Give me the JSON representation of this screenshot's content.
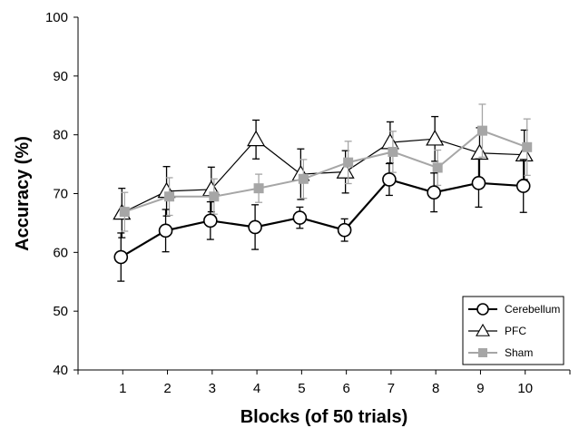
{
  "chart_data": {
    "type": "line",
    "title": "",
    "xlabel": "Blocks (of 50 trials)",
    "ylabel": "Accuracy (%)",
    "x": [
      1,
      2,
      3,
      4,
      5,
      6,
      7,
      8,
      9,
      10
    ],
    "x_tick_labels": [
      "1",
      "2",
      "3",
      "4",
      "5",
      "6",
      "7",
      "8",
      "9",
      "10"
    ],
    "xlim": [
      0,
      11
    ],
    "ylim": [
      40,
      100
    ],
    "y_ticks": [
      40,
      50,
      60,
      70,
      80,
      90,
      100
    ],
    "y_tick_labels": [
      "40",
      "50",
      "60",
      "70",
      "80",
      "90",
      "100"
    ],
    "grid": false,
    "legend_position": "bottom-right",
    "series": [
      {
        "name": "Cerebellum",
        "marker": "circle",
        "color": "#000000",
        "values": [
          59.2,
          63.7,
          65.4,
          64.3,
          65.9,
          63.8,
          72.4,
          70.2,
          71.8,
          71.3
        ],
        "errors": [
          4.1,
          3.6,
          3.2,
          3.8,
          1.8,
          1.9,
          2.7,
          3.3,
          4.1,
          4.5
        ]
      },
      {
        "name": "PFC",
        "marker": "triangle",
        "color": "#000000",
        "values": [
          66.7,
          70.4,
          70.7,
          79.2,
          73.3,
          73.7,
          78.7,
          79.3,
          76.9,
          76.6
        ],
        "errors": [
          4.2,
          4.2,
          3.8,
          3.3,
          4.3,
          3.6,
          3.5,
          3.8,
          4.3,
          4.2
        ]
      },
      {
        "name": "Sham",
        "marker": "square",
        "color": "#a6a6a6",
        "values": [
          66.9,
          69.5,
          69.5,
          70.9,
          72.5,
          75.3,
          77.1,
          74.4,
          80.7,
          77.9
        ],
        "errors": [
          3.3,
          3.2,
          3.0,
          2.4,
          3.3,
          3.6,
          3.5,
          3.0,
          4.5,
          4.8
        ]
      }
    ]
  }
}
